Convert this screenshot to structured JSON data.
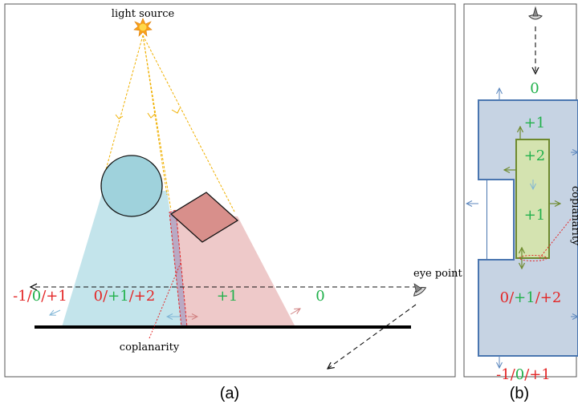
{
  "panel_a": {
    "caption": "(a)",
    "light_source_label": "light source",
    "eye_point_label": "eye point",
    "coplanarity_label": "coplanarity",
    "region_labels": [
      {
        "parts": [
          {
            "text": "-1",
            "color": "#e32626"
          },
          {
            "text": "/",
            "color": "#e32626"
          },
          {
            "text": "0",
            "color": "#22b14c"
          },
          {
            "text": "/",
            "color": "#e32626"
          },
          {
            "text": "+1",
            "color": "#e32626"
          }
        ]
      },
      {
        "parts": [
          {
            "text": "0",
            "color": "#e32626"
          },
          {
            "text": "/",
            "color": "#e32626"
          },
          {
            "text": "+1",
            "color": "#22b14c"
          },
          {
            "text": "/",
            "color": "#e32626"
          },
          {
            "text": "+2",
            "color": "#e32626"
          }
        ]
      },
      {
        "parts": [
          {
            "text": "+1",
            "color": "#22b14c"
          }
        ]
      },
      {
        "parts": [
          {
            "text": "0",
            "color": "#22b14c"
          }
        ]
      }
    ]
  },
  "panel_b": {
    "caption": "(b)",
    "coplanarity_label": "coplanarity",
    "labels": {
      "top_zero": "0",
      "inner_plus1_top": "+1",
      "inner_plus2": "+2",
      "inner_plus1": "+1"
    },
    "region_labels": [
      {
        "parts": [
          {
            "text": "0",
            "color": "#e32626"
          },
          {
            "text": "/",
            "color": "#e32626"
          },
          {
            "text": "+1",
            "color": "#22b14c"
          },
          {
            "text": "/",
            "color": "#e32626"
          },
          {
            "text": "+2",
            "color": "#e32626"
          }
        ]
      },
      {
        "parts": [
          {
            "text": "-1",
            "color": "#e32626"
          },
          {
            "text": "/",
            "color": "#e32626"
          },
          {
            "text": "0",
            "color": "#22b14c"
          },
          {
            "text": "/",
            "color": "#e32626"
          },
          {
            "text": "+1",
            "color": "#e32626"
          }
        ]
      }
    ]
  },
  "colors": {
    "red": "#e32626",
    "green": "#22b14c",
    "shadow_blue": "#a9d9e3",
    "shadow_pink": "#e8b7b7",
    "sphere": "#9fd2dc",
    "cube": "#d88f8b",
    "ray": "#f0b000",
    "box_fill": "#c6d3e3",
    "box_stroke": "#4a76b0",
    "inner_fill": "#d4e3b0",
    "inner_stroke": "#6e8a2e"
  }
}
